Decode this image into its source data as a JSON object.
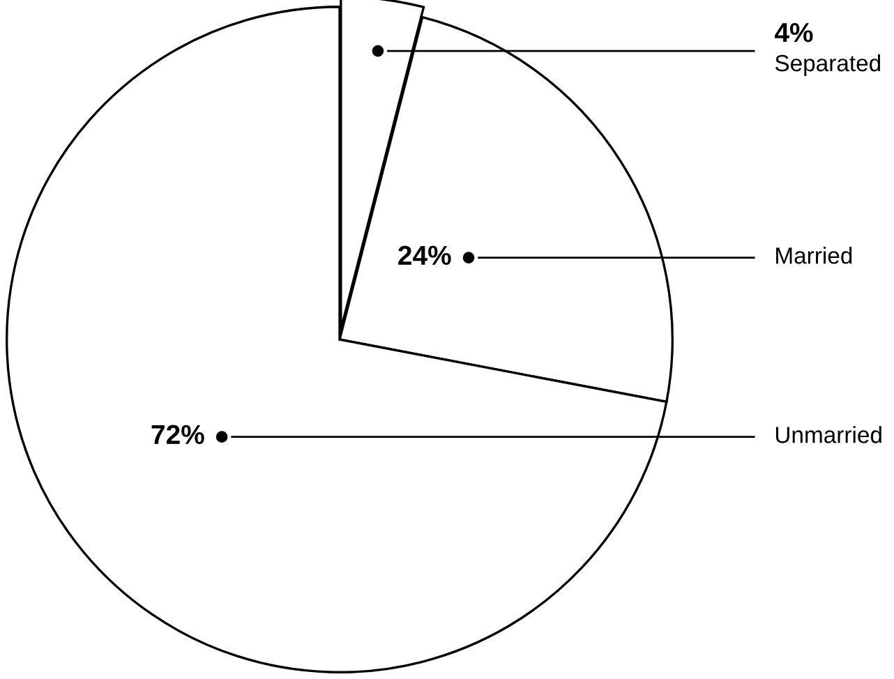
{
  "chart_data": {
    "type": "pie",
    "categories": [
      "Separated",
      "Married",
      "Unmarried"
    ],
    "values": [
      4,
      24,
      72
    ],
    "colors": [
      "#ffffff",
      "#ffffff",
      "#ffffff"
    ],
    "value_labels": [
      "4%",
      "24%",
      "72%"
    ]
  }
}
